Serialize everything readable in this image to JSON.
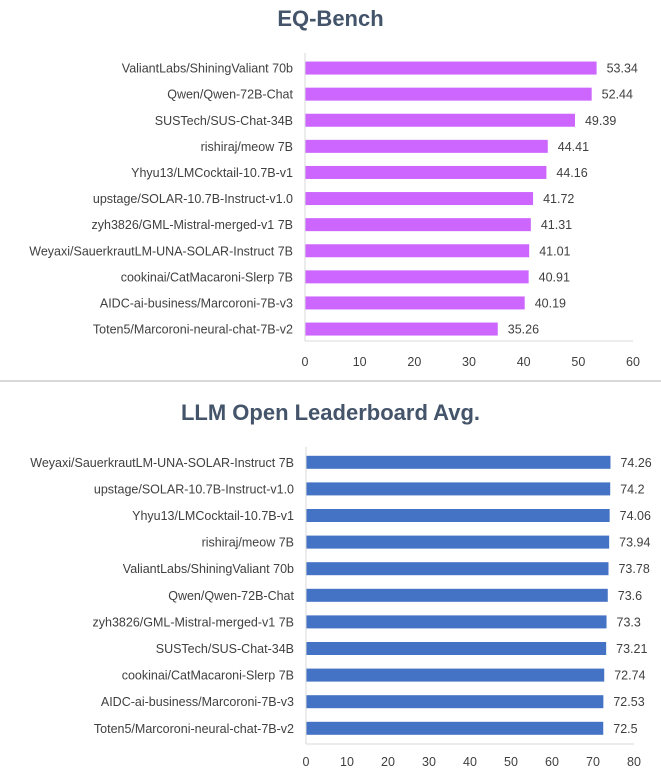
{
  "chart_data": [
    {
      "type": "bar",
      "orientation": "horizontal",
      "title": "EQ-Bench",
      "color": "#cc66ff",
      "categories": [
        "ValiantLabs/ShiningValiant 70b",
        "Qwen/Qwen-72B-Chat",
        "SUSTech/SUS-Chat-34B",
        "rishiraj/meow 7B",
        "Yhyu13/LMCocktail-10.7B-v1",
        "upstage/SOLAR-10.7B-Instruct-v1.0",
        "zyh3826/GML-Mistral-merged-v1 7B",
        "Weyaxi/SauerkrautLM-UNA-SOLAR-Instruct 7B",
        "cookinai/CatMacaroni-Slerp 7B",
        "AIDC-ai-business/Marcoroni-7B-v3",
        "Toten5/Marcoroni-neural-chat-7B-v2"
      ],
      "values": [
        53.34,
        52.44,
        49.39,
        44.41,
        44.16,
        41.72,
        41.31,
        41.01,
        40.91,
        40.19,
        35.26
      ],
      "value_labels": [
        "53.34",
        "52.44",
        "49.39",
        "44.41",
        "44.16",
        "41.72",
        "41.31",
        "41.01",
        "40.91",
        "40.19",
        "35.26"
      ],
      "xlim": [
        0,
        60
      ],
      "xticks": [
        "0",
        "10",
        "20",
        "30",
        "40",
        "50",
        "60"
      ],
      "grid": false
    },
    {
      "type": "bar",
      "orientation": "horizontal",
      "title": "LLM Open Leaderboard Avg.",
      "color": "#4472c4",
      "categories": [
        "Weyaxi/SauerkrautLM-UNA-SOLAR-Instruct 7B",
        "upstage/SOLAR-10.7B-Instruct-v1.0",
        "Yhyu13/LMCocktail-10.7B-v1",
        "rishiraj/meow 7B",
        "ValiantLabs/ShiningValiant 70b",
        "Qwen/Qwen-72B-Chat",
        "zyh3826/GML-Mistral-merged-v1 7B",
        "SUSTech/SUS-Chat-34B",
        "cookinai/CatMacaroni-Slerp 7B",
        "AIDC-ai-business/Marcoroni-7B-v3",
        "Toten5/Marcoroni-neural-chat-7B-v2"
      ],
      "values": [
        74.26,
        74.2,
        74.06,
        73.94,
        73.78,
        73.6,
        73.3,
        73.21,
        72.74,
        72.53,
        72.5
      ],
      "value_labels": [
        "74.26",
        "74.2",
        "74.06",
        "73.94",
        "73.78",
        "73.6",
        "73.3",
        "73.21",
        "72.74",
        "72.53",
        "72.5"
      ],
      "xlim": [
        0,
        80
      ],
      "xticks": [
        "0",
        "10",
        "20",
        "30",
        "40",
        "50",
        "60",
        "70",
        "80"
      ],
      "grid": false
    }
  ]
}
